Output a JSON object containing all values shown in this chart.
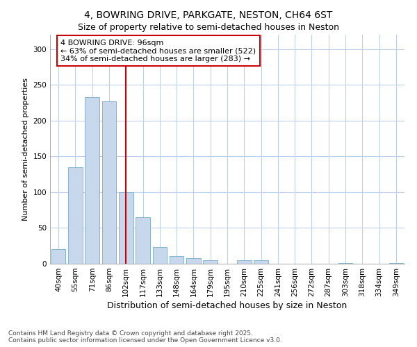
{
  "title1": "4, BOWRING DRIVE, PARKGATE, NESTON, CH64 6ST",
  "title2": "Size of property relative to semi-detached houses in Neston",
  "xlabel": "Distribution of semi-detached houses by size in Neston",
  "ylabel": "Number of semi-detached properties",
  "categories": [
    "40sqm",
    "55sqm",
    "71sqm",
    "86sqm",
    "102sqm",
    "117sqm",
    "133sqm",
    "148sqm",
    "164sqm",
    "179sqm",
    "195sqm",
    "210sqm",
    "225sqm",
    "241sqm",
    "256sqm",
    "272sqm",
    "287sqm",
    "303sqm",
    "318sqm",
    "334sqm",
    "349sqm"
  ],
  "values": [
    20,
    135,
    233,
    227,
    100,
    65,
    23,
    11,
    8,
    5,
    0,
    5,
    5,
    0,
    0,
    0,
    0,
    1,
    0,
    0,
    1
  ],
  "bar_color": "#c8d8ec",
  "bar_edge_color": "#7aaac8",
  "vline_x": 4,
  "vline_color": "#cc0000",
  "annotation_text": "4 BOWRING DRIVE: 96sqm\n← 63% of semi-detached houses are smaller (522)\n34% of semi-detached houses are larger (283) →",
  "annotation_box_color": "#ffffff",
  "annotation_box_edge": "#cc0000",
  "ylim": [
    0,
    320
  ],
  "yticks": [
    0,
    50,
    100,
    150,
    200,
    250,
    300
  ],
  "footnote": "Contains HM Land Registry data © Crown copyright and database right 2025.\nContains public sector information licensed under the Open Government Licence v3.0.",
  "bg_color": "#ffffff",
  "plot_bg_color": "#ffffff",
  "title1_fontsize": 10,
  "title2_fontsize": 9,
  "xlabel_fontsize": 9,
  "ylabel_fontsize": 8,
  "tick_fontsize": 7.5,
  "footnote_fontsize": 6.5
}
